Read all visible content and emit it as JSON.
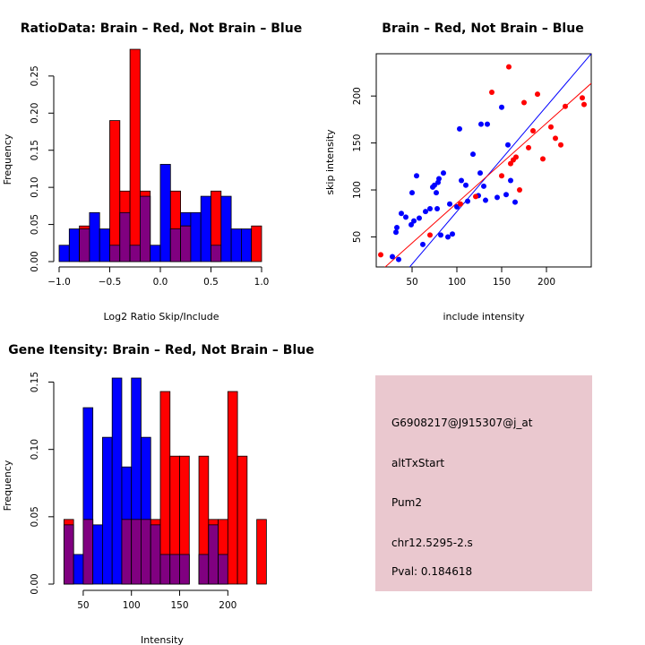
{
  "colors": {
    "red": "#ff0000",
    "blue": "#0000ff",
    "overlap": "#800080",
    "pval": "#8b0000",
    "panel_bg": "#eac8cf"
  },
  "chart_data": [
    {
      "type": "bar",
      "subtype": "histogram-overlay",
      "title": "RatioData: Brain – Red, Not Brain – Blue",
      "xlabel": "Log2 Ratio Skip/Include",
      "ylabel": "Frequency",
      "xlim": [
        -1.0,
        1.0
      ],
      "ylim": [
        0,
        0.28
      ],
      "x_ticks": [
        -1.0,
        -0.5,
        0.0,
        0.5,
        1.0
      ],
      "x_tick_labels": [
        "−1.0",
        "−0.5",
        "0.0",
        "0.5",
        "1.0"
      ],
      "y_ticks": [
        0.0,
        0.05,
        0.1,
        0.15,
        0.2,
        0.25
      ],
      "y_tick_labels": [
        "0.00",
        "0.05",
        "0.10",
        "0.15",
        "0.20",
        "0.25"
      ],
      "bin_start": -1.0,
      "bin_width": 0.1,
      "series": [
        {
          "name": "Not Brain",
          "color": "blue",
          "values": [
            0.022,
            0.044,
            0.044,
            0.066,
            0.044,
            0.022,
            0.066,
            0.022,
            0.088,
            0.022,
            0.131,
            0.044,
            0.066,
            0.066,
            0.088,
            0.022,
            0.088,
            0.044,
            0.044,
            0.0
          ]
        },
        {
          "name": "Brain",
          "color": "red",
          "values": [
            0.0,
            0.0,
            0.048,
            0.0,
            0.0,
            0.19,
            0.095,
            0.286,
            0.095,
            0.0,
            0.0,
            0.095,
            0.048,
            0.0,
            0.0,
            0.095,
            0.0,
            0.0,
            0.0,
            0.048
          ]
        }
      ]
    },
    {
      "type": "scatter",
      "title": "Brain – Red, Not Brain – Blue",
      "xlabel": "include intensity",
      "ylabel": "skip intensity",
      "xlim": [
        10,
        250
      ],
      "ylim": [
        18,
        245
      ],
      "x_ticks": [
        50,
        100,
        150,
        200
      ],
      "x_tick_labels": [
        "50",
        "100",
        "150",
        "200"
      ],
      "y_ticks": [
        50,
        100,
        150,
        200
      ],
      "y_tick_labels": [
        "50",
        "100",
        "150",
        "200"
      ],
      "series": [
        {
          "name": "Not Brain",
          "color": "blue",
          "fit": {
            "slope": 1.12,
            "intercept": -35
          },
          "points": [
            [
              28,
              29
            ],
            [
              32,
              55
            ],
            [
              33,
              60
            ],
            [
              35,
              26
            ],
            [
              38,
              75
            ],
            [
              43,
              71
            ],
            [
              49,
              63
            ],
            [
              50,
              97
            ],
            [
              52,
              67
            ],
            [
              55,
              115
            ],
            [
              58,
              70
            ],
            [
              62,
              42
            ],
            [
              65,
              77
            ],
            [
              70,
              80
            ],
            [
              73,
              103
            ],
            [
              75,
              105
            ],
            [
              77,
              97
            ],
            [
              78,
              80
            ],
            [
              79,
              108
            ],
            [
              80,
              112
            ],
            [
              82,
              52
            ],
            [
              85,
              118
            ],
            [
              90,
              50
            ],
            [
              92,
              85
            ],
            [
              95,
              53
            ],
            [
              100,
              82
            ],
            [
              103,
              165
            ],
            [
              105,
              110
            ],
            [
              110,
              105
            ],
            [
              112,
              88
            ],
            [
              118,
              138
            ],
            [
              124,
              94
            ],
            [
              126,
              118
            ],
            [
              127,
              170
            ],
            [
              130,
              104
            ],
            [
              132,
              89
            ],
            [
              134,
              170
            ],
            [
              145,
              92
            ],
            [
              150,
              188
            ],
            [
              155,
              95
            ],
            [
              157,
              148
            ],
            [
              160,
              110
            ],
            [
              165,
              87
            ]
          ]
        },
        {
          "name": "Brain",
          "color": "red",
          "fit": {
            "slope": 0.85,
            "intercept": 1
          },
          "points": [
            [
              15,
              31
            ],
            [
              70,
              52
            ],
            [
              104,
              85
            ],
            [
              121,
              93
            ],
            [
              139,
              204
            ],
            [
              150,
              115
            ],
            [
              158,
              231
            ],
            [
              160,
              128
            ],
            [
              163,
              132
            ],
            [
              166,
              135
            ],
            [
              170,
              100
            ],
            [
              175,
              193
            ],
            [
              180,
              145
            ],
            [
              185,
              163
            ],
            [
              190,
              202
            ],
            [
              196,
              133
            ],
            [
              205,
              167
            ],
            [
              210,
              155
            ],
            [
              216,
              148
            ],
            [
              221,
              189
            ],
            [
              240,
              198
            ],
            [
              242,
              191
            ]
          ]
        }
      ]
    },
    {
      "type": "bar",
      "subtype": "histogram-overlay",
      "title": "Gene Itensity: Brain – Red, Not Brain – Blue",
      "xlabel": "Intensity",
      "ylabel": "Frequency",
      "xlim": [
        25,
        235
      ],
      "ylim": [
        0,
        0.155
      ],
      "x_ticks": [
        50,
        100,
        150,
        200
      ],
      "x_tick_labels": [
        "50",
        "100",
        "150",
        "200"
      ],
      "y_ticks": [
        0.0,
        0.05,
        0.1,
        0.15
      ],
      "y_tick_labels": [
        "0.00",
        "0.05",
        "0.10",
        "0.15"
      ],
      "bin_start": 30,
      "bin_width": 10,
      "series": [
        {
          "name": "Not Brain",
          "color": "blue",
          "values": [
            0.044,
            0.022,
            0.131,
            0.044,
            0.109,
            0.153,
            0.087,
            0.153,
            0.109,
            0.044,
            0.022,
            0.022,
            0.022,
            0.0,
            0.022,
            0.044,
            0.022,
            0.0,
            0.0,
            0.0
          ]
        },
        {
          "name": "Brain",
          "color": "red",
          "values": [
            0.048,
            0.0,
            0.048,
            0.0,
            0.0,
            0.0,
            0.048,
            0.048,
            0.048,
            0.048,
            0.143,
            0.095,
            0.095,
            0.0,
            0.095,
            0.048,
            0.048,
            0.143,
            0.095,
            0.0,
            0.048
          ]
        }
      ]
    }
  ],
  "info_panel": {
    "probe": "G6908217@J915307@j_at",
    "event": "altTxStart",
    "gene": "Pum2",
    "id": "chr12.5295-2.s",
    "pval": "Pval: 0.184618"
  }
}
